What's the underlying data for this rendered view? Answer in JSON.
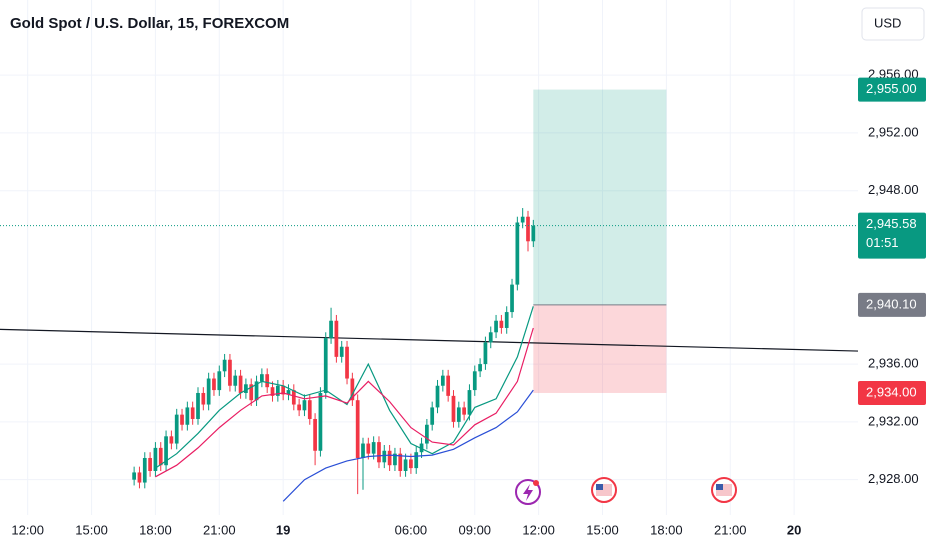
{
  "chart_data": {
    "type": "candlestick",
    "title": "Gold Spot / U.S. Dollar, 15, FOREXCOM",
    "currency": "USD",
    "up_color": "#089981",
    "down_color": "#f23645",
    "xlim": [
      -1.3,
      39
    ],
    "ylim": [
      2925.9,
      2961.2
    ],
    "xticks": [
      {
        "value": 0,
        "label": "12:00"
      },
      {
        "value": 3,
        "label": "15:00"
      },
      {
        "value": 6,
        "label": "18:00"
      },
      {
        "value": 9,
        "label": "21:00"
      },
      {
        "value": 12,
        "label": "19"
      },
      {
        "value": 18,
        "label": "06:00"
      },
      {
        "value": 21,
        "label": "09:00"
      },
      {
        "value": 24,
        "label": "12:00"
      },
      {
        "value": 27,
        "label": "15:00"
      },
      {
        "value": 30,
        "label": "18:00"
      },
      {
        "value": 33,
        "label": "21:00"
      },
      {
        "value": 36,
        "label": "20"
      }
    ],
    "yticks": [
      {
        "value": 2928,
        "label": "2,928.00"
      },
      {
        "value": 2932,
        "label": "2,932.00"
      },
      {
        "value": 2936,
        "label": "2,936.00"
      },
      {
        "value": 2948,
        "label": "2,948.00"
      },
      {
        "value": 2952,
        "label": "2,952.00"
      },
      {
        "value": 2956,
        "label": "2,956.00"
      }
    ],
    "grid": true,
    "x": [
      5,
      5.25,
      5.5,
      5.75,
      6,
      6.25,
      6.5,
      6.75,
      7,
      7.25,
      7.5,
      7.75,
      8,
      8.25,
      8.5,
      8.75,
      9,
      9.25,
      9.5,
      9.75,
      10,
      10.25,
      10.5,
      10.75,
      11,
      11.25,
      11.5,
      11.75,
      12,
      12.25,
      12.5,
      12.75,
      13,
      13.25,
      13.5,
      13.75,
      14,
      14.25,
      14.5,
      14.75,
      15,
      15.25,
      15.5,
      15.75,
      16,
      16.25,
      16.5,
      16.75,
      17,
      17.25,
      17.5,
      17.75,
      18,
      18.25,
      18.5,
      18.75,
      19,
      19.25,
      19.5,
      19.75,
      20,
      20.25,
      20.5,
      20.75,
      21,
      21.25,
      21.5,
      21.75,
      22,
      22.25,
      22.5,
      22.75,
      23,
      23.25,
      23.5,
      23.75
    ],
    "open": [
      2928.0,
      2928.5,
      2927.8,
      2929.5,
      2928.6,
      2930.2,
      2929.0,
      2931.0,
      2930.5,
      2932.5,
      2931.8,
      2933.0,
      2932.2,
      2934.0,
      2933.2,
      2935.0,
      2934.2,
      2935.5,
      2936.3,
      2934.5,
      2935.2,
      2934.0,
      2934.6,
      2933.5,
      2934.8,
      2935.3,
      2934.4,
      2933.8,
      2934.5,
      2933.9,
      2934.2,
      2933.2,
      2932.8,
      2933.5,
      2932.2,
      2930.0,
      2934.0,
      2937.8,
      2939.0,
      2936.5,
      2937.2,
      2935.0,
      2933.5,
      2929.5,
      2930.5,
      2929.8,
      2930.6,
      2929.2,
      2930.0,
      2929.0,
      2929.8,
      2928.6,
      2929.4,
      2928.8,
      2929.9,
      2930.5,
      2931.8,
      2933.0,
      2934.5,
      2935.2,
      2933.8,
      2932.0,
      2933.0,
      2932.5,
      2934.2,
      2935.5,
      2936.0,
      2937.5,
      2938.2,
      2939.0,
      2938.5,
      2939.6,
      2941.5,
      2945.8,
      2946.2,
      2944.5
    ],
    "high": [
      2928.9,
      2928.9,
      2929.9,
      2929.9,
      2930.6,
      2930.6,
      2931.4,
      2931.4,
      2932.9,
      2932.9,
      2933.4,
      2933.4,
      2934.4,
      2934.4,
      2935.4,
      2935.4,
      2935.9,
      2936.7,
      2936.7,
      2935.6,
      2935.6,
      2935.0,
      2935.0,
      2935.2,
      2935.7,
      2935.7,
      2934.8,
      2934.9,
      2934.9,
      2934.6,
      2934.6,
      2933.6,
      2933.9,
      2933.9,
      2932.6,
      2934.4,
      2938.2,
      2939.9,
      2939.4,
      2937.6,
      2937.6,
      2935.4,
      2933.9,
      2930.9,
      2930.9,
      2931.0,
      2931.0,
      2930.4,
      2930.4,
      2930.2,
      2930.2,
      2929.8,
      2929.8,
      2930.3,
      2930.9,
      2932.2,
      2933.4,
      2934.9,
      2935.6,
      2935.6,
      2934.2,
      2933.4,
      2933.4,
      2934.6,
      2935.9,
      2936.4,
      2937.9,
      2938.6,
      2939.4,
      2939.4,
      2940.0,
      2941.9,
      2946.2,
      2946.8,
      2946.6,
      2945.98
    ],
    "low": [
      2927.6,
      2927.4,
      2927.4,
      2928.2,
      2928.2,
      2928.6,
      2928.6,
      2930.1,
      2930.1,
      2931.4,
      2931.4,
      2931.8,
      2931.8,
      2932.8,
      2932.8,
      2933.8,
      2933.8,
      2935.1,
      2934.1,
      2934.1,
      2933.6,
      2933.6,
      2933.1,
      2933.1,
      2934.4,
      2934.0,
      2933.4,
      2933.4,
      2933.5,
      2933.5,
      2932.8,
      2932.4,
      2932.4,
      2931.8,
      2929.0,
      2929.6,
      2933.6,
      2937.4,
      2936.1,
      2936.1,
      2934.6,
      2933.1,
      2927.0,
      2927.3,
      2929.4,
      2929.4,
      2928.8,
      2928.8,
      2928.6,
      2928.6,
      2928.2,
      2928.2,
      2928.4,
      2928.4,
      2929.5,
      2930.1,
      2931.4,
      2932.6,
      2934.1,
      2933.4,
      2931.6,
      2931.6,
      2932.1,
      2932.1,
      2933.8,
      2935.1,
      2935.6,
      2937.1,
      2937.8,
      2938.1,
      2938.1,
      2939.2,
      2941.1,
      2945.4,
      2943.8,
      2944.1
    ],
    "close": [
      2928.5,
      2927.8,
      2929.5,
      2928.6,
      2930.2,
      2929.0,
      2931.0,
      2930.5,
      2932.5,
      2931.8,
      2933.0,
      2932.2,
      2934.0,
      2933.2,
      2935.0,
      2934.2,
      2935.5,
      2936.3,
      2934.5,
      2935.2,
      2934.0,
      2934.6,
      2933.5,
      2934.8,
      2935.3,
      2934.4,
      2933.8,
      2934.5,
      2933.9,
      2934.2,
      2933.2,
      2932.8,
      2933.5,
      2932.2,
      2930.0,
      2934.0,
      2937.8,
      2939.0,
      2936.5,
      2937.2,
      2935.0,
      2933.5,
      2929.5,
      2930.5,
      2929.8,
      2930.6,
      2929.2,
      2930.0,
      2929.0,
      2929.8,
      2928.6,
      2929.4,
      2928.8,
      2929.9,
      2930.5,
      2931.8,
      2933.0,
      2934.5,
      2935.2,
      2933.8,
      2932.0,
      2933.0,
      2932.5,
      2934.2,
      2935.5,
      2936.0,
      2937.5,
      2938.2,
      2939.0,
      2938.5,
      2939.6,
      2941.5,
      2945.8,
      2946.2,
      2944.5,
      2945.58
    ],
    "series": [
      {
        "color": "#089981",
        "x": [
          6,
          7,
          8,
          9,
          10,
          11,
          12,
          13,
          14,
          15,
          16,
          17,
          18,
          19,
          20,
          21,
          22,
          23,
          23.75
        ],
        "values": [
          2928.8,
          2929.8,
          2931.2,
          2932.8,
          2934.0,
          2934.8,
          2934.5,
          2933.8,
          2934.2,
          2933.2,
          2936.0,
          2932.8,
          2930.5,
          2929.8,
          2930.6,
          2933.0,
          2933.6,
          2936.5,
          2940.0
        ]
      },
      {
        "color": "#e91e63",
        "x": [
          6,
          7,
          8,
          9,
          10,
          11,
          12,
          13,
          14,
          15,
          16,
          17,
          18,
          19,
          20,
          21,
          22,
          23,
          23.75
        ],
        "values": [
          2928.2,
          2929.0,
          2930.2,
          2931.6,
          2932.8,
          2933.8,
          2934.0,
          2933.6,
          2933.8,
          2933.3,
          2934.8,
          2933.4,
          2931.6,
          2930.6,
          2930.4,
          2931.8,
          2932.6,
          2934.8,
          2938.5
        ]
      },
      {
        "color": "#2a4fd6",
        "x": [
          12,
          13,
          14,
          15,
          16,
          17,
          18,
          19,
          20,
          21,
          22,
          23,
          23.75
        ],
        "values": [
          2926.5,
          2928.0,
          2928.8,
          2929.3,
          2929.6,
          2929.7,
          2929.6,
          2929.7,
          2930.1,
          2930.9,
          2931.6,
          2932.7,
          2934.2
        ]
      }
    ],
    "trendline": {
      "x": [
        -1.3,
        39
      ],
      "y": [
        2938.4,
        2936.9
      ]
    },
    "position": {
      "x": [
        23.75,
        30
      ],
      "target": 2955,
      "entry": 2940.1,
      "stop": 2934
    },
    "price_tags": [
      {
        "value": 2955,
        "label": "2,955.00",
        "color": "#089981"
      },
      {
        "value": 2945.58,
        "label": "2,945.58",
        "color": "#089981",
        "countdown": "01:51"
      },
      {
        "value": 2940.1,
        "label": "2,940.10",
        "color": "#787b86"
      },
      {
        "value": 2934,
        "label": "2,934.00",
        "color": "#f23645"
      }
    ]
  }
}
